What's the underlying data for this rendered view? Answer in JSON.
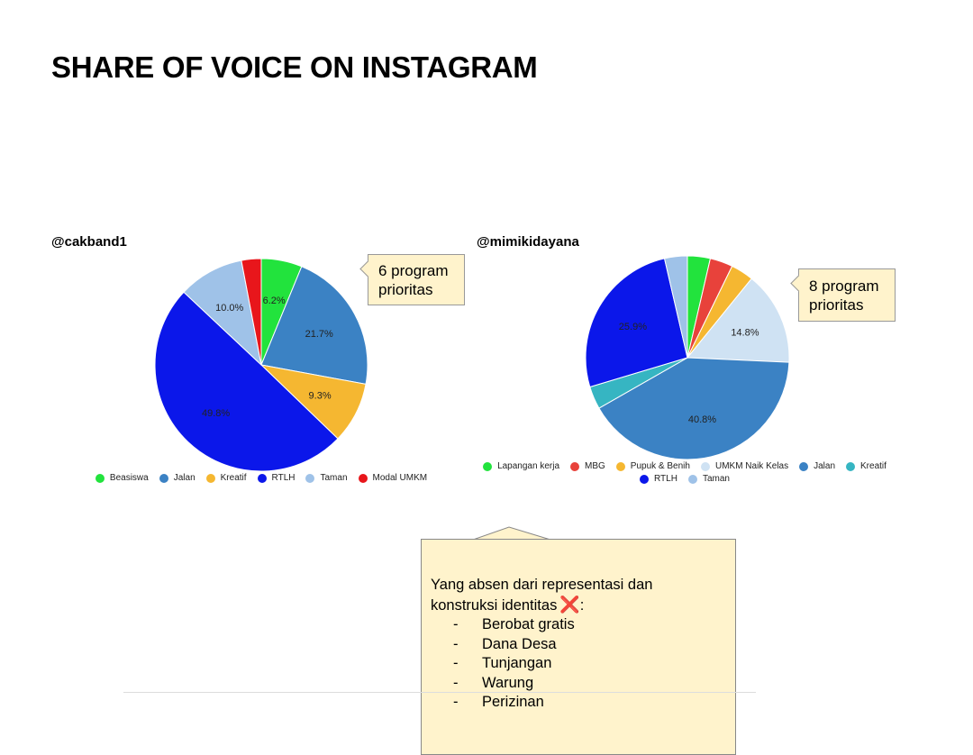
{
  "slide_title": "SHARE OF VOICE ON INSTAGRAM",
  "chart_data": [
    {
      "type": "pie",
      "title": "@cakband1",
      "categories": [
        "Beasiswa",
        "Jalan",
        "Kreatif",
        "RTLH",
        "Taman",
        "Modal UMKM"
      ],
      "values": [
        6.2,
        21.7,
        9.3,
        49.8,
        10.0,
        3.0
      ],
      "data_labels": [
        "6.2%",
        "21.7%",
        "9.3%",
        "49.8%",
        "10.0%",
        ""
      ],
      "colors": [
        "#22e33d",
        "#3b82c4",
        "#f5b731",
        "#0b17ea",
        "#9fc2e8",
        "#e8161b"
      ],
      "legend_position": "bottom"
    },
    {
      "type": "pie",
      "title": "@mimikidayana",
      "categories": [
        "Lapangan kerja",
        "MBG",
        "Pupuk & Benih",
        "UMKM Naik Kelas",
        "Jalan",
        "Kreatif",
        "RTLH",
        "Taman"
      ],
      "values": [
        3.6,
        3.6,
        3.6,
        14.8,
        40.8,
        3.6,
        25.9,
        3.6
      ],
      "data_labels": [
        "",
        "",
        "",
        "14.8%",
        "40.8%",
        "",
        "25.9%",
        ""
      ],
      "colors": [
        "#22e33d",
        "#e8423b",
        "#f5b731",
        "#cfe2f3",
        "#3b82c4",
        "#36b5c2",
        "#0b17ea",
        "#9fc2e8"
      ],
      "legend_position": "bottom"
    }
  ],
  "callout_left": {
    "line1": "6 program",
    "line2": "prioritas"
  },
  "callout_right": {
    "line1": "8 program",
    "line2": "prioritas"
  },
  "note": {
    "line1": "Yang absen dari representasi dan",
    "line2": "konstruksi identitas",
    "x_mark": "❌",
    "colon": ":",
    "dash": "-",
    "items": [
      "Berobat gratis",
      "Dana Desa",
      "Tunjangan",
      "Warung",
      "Perizinan"
    ]
  }
}
